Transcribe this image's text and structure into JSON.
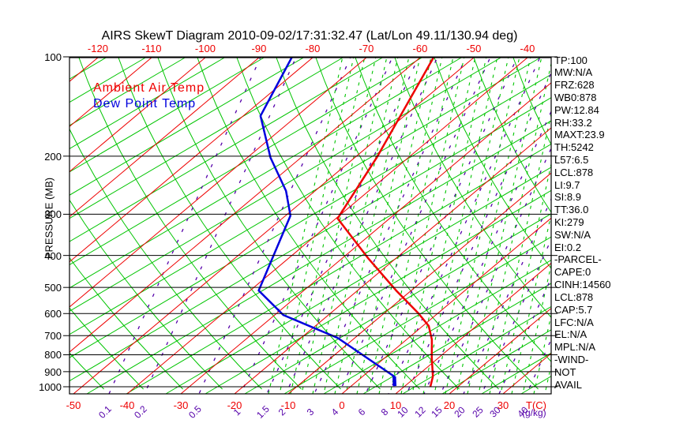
{
  "title": "AIRS SkewT Diagram 2010-09-02/17:31:32.47 (Lat/Lon 49.11/130.94 deg)",
  "legend": {
    "ambient_label": "Ambient Air Temp",
    "dewpoint_label": "Dew Point Temp"
  },
  "side_panel": {
    "lines": [
      "TP:100",
      "MW:N/A",
      "FRZ:628",
      "WB0:878",
      "PW:12.84",
      "RH:33.2",
      "MAXT:23.9",
      "TH:5242",
      "L57:6.5",
      "LCL:878",
      "LI:9.7",
      "SI:8.9",
      "TT:36.0",
      "KI:279",
      "SW:N/A",
      "EI:0.2",
      "-PARCEL-",
      "CAPE:0",
      "CINH:14560",
      "LCL:878",
      "CAP:5.7",
      "LFC:N/A",
      "EL:N/A",
      "MPL:N/A",
      "-WIND-",
      "NOT",
      "AVAIL"
    ]
  },
  "axes": {
    "pressure_axis_label": "PRESSURE (MB)",
    "pressure_ticks": [
      100,
      200,
      300,
      400,
      500,
      600,
      700,
      800,
      900,
      1000
    ],
    "top_temp_ticks": [
      -120,
      -110,
      -100,
      -90,
      -80,
      -70,
      -60,
      -50,
      -40
    ],
    "bottom_temp_ticks": [
      -50,
      -40,
      -30,
      -20,
      -10,
      0,
      10,
      20,
      30
    ],
    "temp_unit_label": "T(C)",
    "mixing_ratio_ticks": [
      "0.1",
      "0.2",
      "0.5",
      "1",
      "1.5",
      "2",
      "3",
      "4",
      "6",
      "8",
      "10",
      "12",
      "15",
      "20",
      "25",
      "30",
      "40"
    ],
    "mixing_unit_label": "(g/kg)"
  },
  "colors": {
    "temperature_line": "#ee0000",
    "dewpoint_line": "#0000dd",
    "isotherm": "#ee0000",
    "adiabat_green": "#00c400",
    "mixing_ratio_purple": "#5500aa",
    "axis_black": "#000000"
  },
  "chart_data": {
    "type": "line",
    "subtype": "skewt-log-p",
    "title": "AIRS SkewT Diagram 2010-09-02/17:31:32.47 (Lat/Lon 49.11/130.94 deg)",
    "xlabel": "T(C)",
    "ylabel": "PRESSURE (MB)",
    "y_scale": "log-pressure",
    "y_range_mb": [
      100,
      1050
    ],
    "x_bottom_range_c": [
      -52,
      39
    ],
    "grid": "skewt background: red isotherms every 10C, green dry/moist adiabats, purple dashed mixing-ratio lines",
    "legend_position": "top-left inside plot",
    "series": [
      {
        "name": "Ambient Air Temp",
        "color": "#ee0000",
        "points_p_mb_t_c": [
          [
            100,
            -57.6
          ],
          [
            202,
            -45.9
          ],
          [
            309,
            -39.7
          ],
          [
            407,
            -25.3
          ],
          [
            511,
            -12.8
          ],
          [
            599,
            -3.6
          ],
          [
            654,
            1.1
          ],
          [
            719,
            4.7
          ],
          [
            816,
            8.7
          ],
          [
            931,
            13.1
          ],
          [
            1000,
            14.9
          ]
        ]
      },
      {
        "name": "Dew Point Temp",
        "color": "#0000dd",
        "points_p_mb_t_c": [
          [
            100,
            -84.0
          ],
          [
            151,
            -76.8
          ],
          [
            202,
            -65.7
          ],
          [
            255,
            -55.4
          ],
          [
            303,
            -49.1
          ],
          [
            511,
            -38.4
          ],
          [
            606,
            -28.4
          ],
          [
            711,
            -13.2
          ],
          [
            931,
            5.9
          ],
          [
            995,
            8.1
          ]
        ]
      }
    ]
  }
}
